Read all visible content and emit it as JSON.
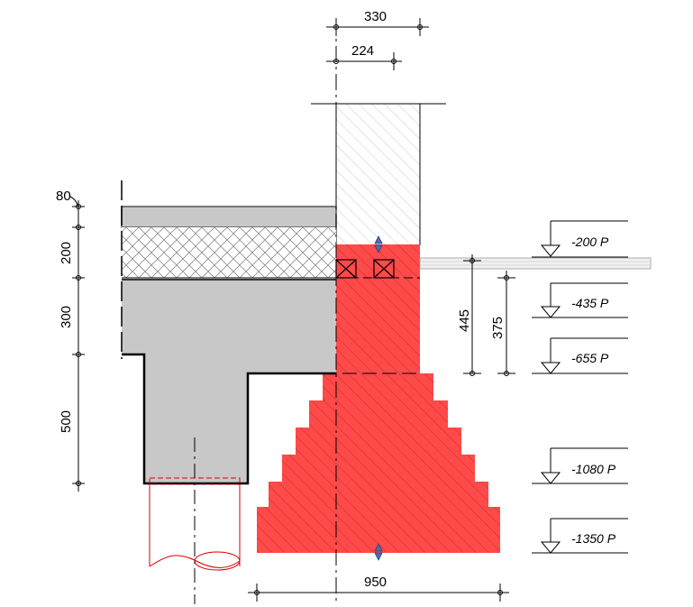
{
  "dimensions": {
    "wall_thickness": "330",
    "wall_core": "224",
    "slab_top_layer": "80",
    "insulation": "200",
    "slab": "300",
    "beam": "500",
    "footing_width": "950",
    "depth_445": "445",
    "depth_375": "375"
  },
  "levels": [
    {
      "label": "-200 P"
    },
    {
      "label": "-435 P"
    },
    {
      "label": "-655 P"
    },
    {
      "label": "-1080 P"
    },
    {
      "label": "-1350 P"
    }
  ],
  "colors": {
    "footing_fill": "#ff4a4a",
    "concrete_fill": "#c8c8c8",
    "pile_outline": "#d40000",
    "line": "#000000"
  }
}
